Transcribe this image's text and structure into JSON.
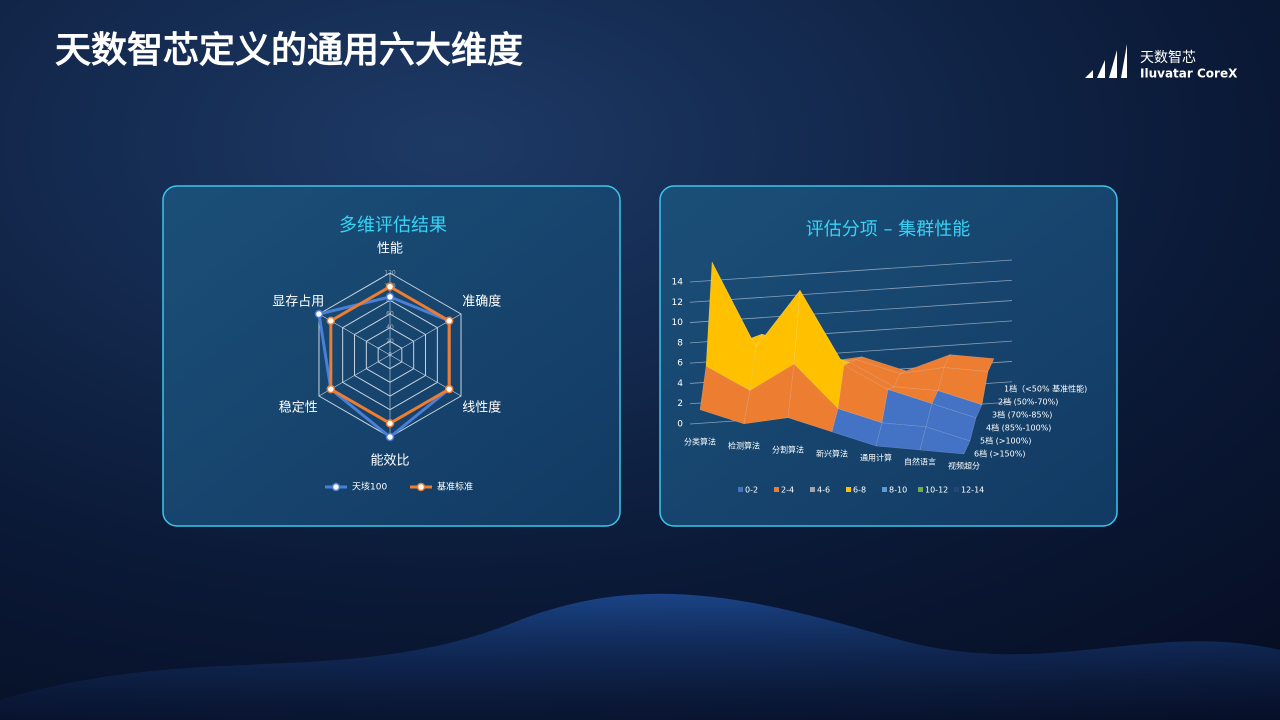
{
  "header": {
    "title": "天数智芯定义的通用六大维度",
    "logo_cn": "天数智芯",
    "logo_en": "Iluvatar CoreX"
  },
  "chart_data": [
    {
      "type": "radar",
      "title": "多维评估结果",
      "categories": [
        "性能",
        "准确度",
        "线性度",
        "能效比",
        "稳定性",
        "显存占用"
      ],
      "series": [
        {
          "name": "天垓100",
          "color": "#4a7fd8",
          "values": [
            85,
            100,
            100,
            120,
            100,
            120
          ]
        },
        {
          "name": "基准标准",
          "color": "#ed7d31",
          "values": [
            100,
            100,
            100,
            100,
            100,
            100
          ]
        }
      ],
      "ylim": [
        0,
        120
      ],
      "yticks": [
        0,
        20,
        40,
        60,
        80,
        100,
        120
      ]
    },
    {
      "type": "surface",
      "title": "评估分项 – 集群性能",
      "categories": [
        "分类算法",
        "检测算法",
        "分割算法",
        "新兴算法",
        "通用计算",
        "自然语言",
        "视频超分"
      ],
      "series": [
        {
          "name": "1档（<50% 基准性能)",
          "values": [
            1,
            1,
            1,
            2,
            1,
            3,
            3
          ]
        },
        {
          "name": "2档 (50%-70%)",
          "values": [
            2,
            3,
            2,
            3,
            2,
            3,
            3
          ]
        },
        {
          "name": "3档 (70%-85%)",
          "values": [
            4,
            6,
            5,
            4,
            2,
            2,
            1
          ]
        },
        {
          "name": "4档 (85%-100%)",
          "values": [
            14,
            6,
            12,
            5,
            3,
            2,
            1
          ]
        },
        {
          "name": "5档 (>100%)",
          "values": [
            5,
            3,
            6,
            2,
            1,
            1,
            0
          ]
        },
        {
          "name": "6档 (>150%)",
          "values": [
            2,
            1,
            2,
            1,
            0,
            0,
            0
          ]
        }
      ],
      "ylim": [
        0,
        14
      ],
      "yticks": [
        0,
        2,
        4,
        6,
        8,
        10,
        12,
        14
      ],
      "bands": [
        {
          "label": "0-2",
          "color": "#4472c4"
        },
        {
          "label": "2-4",
          "color": "#ed7d31"
        },
        {
          "label": "4-6",
          "color": "#a5a5a5"
        },
        {
          "label": "6-8",
          "color": "#ffc000"
        },
        {
          "label": "8-10",
          "color": "#5b9bd5"
        },
        {
          "label": "10-12",
          "color": "#70ad47"
        },
        {
          "label": "12-14",
          "color": "#264478"
        }
      ]
    }
  ]
}
